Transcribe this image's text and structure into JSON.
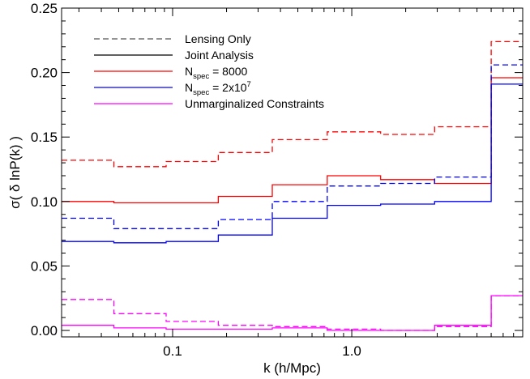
{
  "chart_data": {
    "type": "line",
    "step": true,
    "xscale": "log",
    "xlabel": "k (h/Mpc)",
    "ylabel": "σ( δ lnP(k) )",
    "xlim": [
      0.024,
      9.0
    ],
    "ylim": [
      -0.005,
      0.25
    ],
    "x_ticks": [
      {
        "value": 0.1,
        "label": "0.1"
      },
      {
        "value": 1.0,
        "label": "1.0"
      }
    ],
    "y_ticks": [
      {
        "value": 0.0,
        "label": "0.00"
      },
      {
        "value": 0.05,
        "label": "0.05"
      },
      {
        "value": 0.1,
        "label": "0.10"
      },
      {
        "value": 0.15,
        "label": "0.15"
      },
      {
        "value": 0.2,
        "label": "0.20"
      },
      {
        "value": 0.25,
        "label": "0.25"
      }
    ],
    "bin_edges": [
      0.024,
      0.047,
      0.092,
      0.18,
      0.36,
      0.73,
      1.45,
      2.9,
      6.0,
      9.0
    ],
    "grid": false,
    "legend_position": "top-left",
    "legend": [
      {
        "label": "Lensing Only",
        "color": "#555555",
        "dash": true
      },
      {
        "label": "Joint Analysis",
        "color": "#000000",
        "dash": false
      },
      {
        "label_main": "N",
        "label_sub": "spec",
        "label_rest": " = 8000",
        "color": "#ff0000",
        "dash": false
      },
      {
        "label_main": "N",
        "label_sub": "spec",
        "label_rest": " = 2x10",
        "label_sup": "7",
        "color": "#0000ff",
        "dash": false
      },
      {
        "label": "Unmarginalized Constraints",
        "color": "#ff00ff",
        "dash": false
      }
    ],
    "series": [
      {
        "color": "#ff0000",
        "dash": true,
        "values": [
          0.132,
          0.127,
          0.131,
          0.138,
          0.148,
          0.154,
          0.152,
          0.158,
          0.224
        ]
      },
      {
        "color": "#ff0000",
        "dash": false,
        "values": [
          0.1,
          0.099,
          0.099,
          0.104,
          0.113,
          0.12,
          0.117,
          0.114,
          0.196
        ]
      },
      {
        "color": "#0000ff",
        "dash": true,
        "values": [
          0.087,
          0.079,
          0.079,
          0.086,
          0.1,
          0.112,
          0.114,
          0.119,
          0.206
        ]
      },
      {
        "color": "#0000ff",
        "dash": false,
        "values": [
          0.069,
          0.068,
          0.069,
          0.074,
          0.087,
          0.097,
          0.098,
          0.1,
          0.191
        ]
      },
      {
        "color": "#ff00ff",
        "dash": true,
        "values": [
          0.024,
          0.013,
          0.007,
          0.004,
          0.003,
          0.001,
          0.0,
          0.003,
          0.027
        ]
      },
      {
        "color": "#ff00ff",
        "dash": false,
        "values": [
          0.004,
          0.002,
          0.001,
          0.001,
          0.002,
          0.0,
          0.0,
          0.004,
          0.027
        ]
      }
    ]
  }
}
